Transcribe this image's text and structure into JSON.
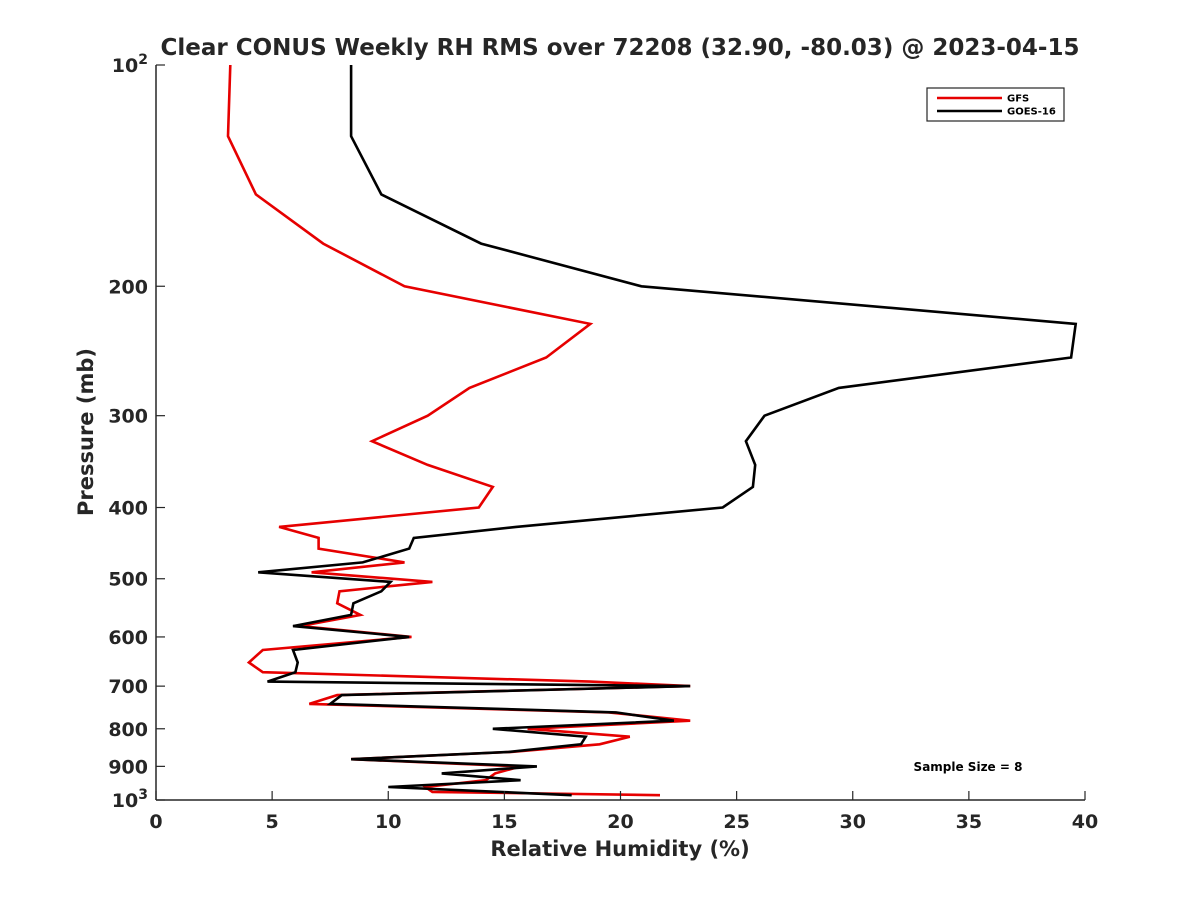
{
  "chart_data": {
    "type": "line",
    "title": "Clear CONUS Weekly RH RMS over 72208 (32.90, -80.03) @ 2023-04-15",
    "xlabel": "Relative Humidity (%)",
    "ylabel": "Pressure (mb)",
    "xlim": [
      0,
      40
    ],
    "ylim": [
      100,
      1000
    ],
    "yscale": "log",
    "y_reversed": true,
    "grid": false,
    "legend_position": "top-right",
    "x_ticks": [
      0,
      5,
      10,
      15,
      20,
      25,
      30,
      35,
      40
    ],
    "x_tick_labels": [
      "0",
      "5",
      "10",
      "15",
      "20",
      "25",
      "30",
      "35",
      "40"
    ],
    "y_ticks": [
      100,
      200,
      300,
      400,
      500,
      600,
      700,
      800,
      900,
      1000
    ],
    "y_tick_labels": [
      "10^2",
      "200",
      "300",
      "400",
      "500",
      "600",
      "700",
      "800",
      "900",
      "10^3"
    ],
    "annotation": "Sample Size = 8",
    "series": [
      {
        "name": "GFS",
        "color": "#e60000",
        "points": [
          [
            3.2,
            100
          ],
          [
            3.1,
            125
          ],
          [
            4.3,
            150
          ],
          [
            7.2,
            175
          ],
          [
            10.7,
            200
          ],
          [
            18.7,
            225
          ],
          [
            16.8,
            250
          ],
          [
            13.5,
            275
          ],
          [
            11.7,
            300
          ],
          [
            9.3,
            325
          ],
          [
            11.7,
            350
          ],
          [
            14.5,
            375
          ],
          [
            13.9,
            400
          ],
          [
            5.3,
            425
          ],
          [
            7.0,
            440
          ],
          [
            7.0,
            455
          ],
          [
            10.7,
            475
          ],
          [
            6.7,
            490
          ],
          [
            11.9,
            505
          ],
          [
            7.9,
            520
          ],
          [
            7.8,
            540
          ],
          [
            8.8,
            560
          ],
          [
            6.2,
            580
          ],
          [
            11.0,
            600
          ],
          [
            4.6,
            625
          ],
          [
            4.0,
            650
          ],
          [
            4.6,
            670
          ],
          [
            18.7,
            690
          ],
          [
            23.0,
            700
          ],
          [
            7.8,
            720
          ],
          [
            6.6,
            740
          ],
          [
            19.5,
            760
          ],
          [
            23.0,
            780
          ],
          [
            16.0,
            800
          ],
          [
            20.4,
            820
          ],
          [
            19.1,
            840
          ],
          [
            15.3,
            860
          ],
          [
            8.4,
            880
          ],
          [
            15.7,
            900
          ],
          [
            14.6,
            920
          ],
          [
            14.2,
            940
          ],
          [
            11.6,
            960
          ],
          [
            11.9,
            975
          ],
          [
            21.7,
            985
          ]
        ]
      },
      {
        "name": "GOES-16",
        "color": "#000000",
        "points": [
          [
            8.4,
            100
          ],
          [
            8.4,
            125
          ],
          [
            9.7,
            150
          ],
          [
            14.0,
            175
          ],
          [
            20.9,
            200
          ],
          [
            39.6,
            225
          ],
          [
            39.4,
            250
          ],
          [
            29.4,
            275
          ],
          [
            26.2,
            300
          ],
          [
            25.4,
            325
          ],
          [
            25.8,
            350
          ],
          [
            25.7,
            375
          ],
          [
            24.4,
            400
          ],
          [
            15.5,
            425
          ],
          [
            11.1,
            440
          ],
          [
            10.9,
            455
          ],
          [
            8.9,
            475
          ],
          [
            4.4,
            490
          ],
          [
            10.1,
            505
          ],
          [
            9.7,
            520
          ],
          [
            8.5,
            540
          ],
          [
            8.4,
            560
          ],
          [
            5.9,
            580
          ],
          [
            10.9,
            600
          ],
          [
            5.9,
            625
          ],
          [
            6.1,
            650
          ],
          [
            6.0,
            670
          ],
          [
            4.8,
            690
          ],
          [
            23.0,
            700
          ],
          [
            8.0,
            720
          ],
          [
            7.5,
            740
          ],
          [
            19.8,
            760
          ],
          [
            22.3,
            780
          ],
          [
            14.5,
            800
          ],
          [
            18.5,
            820
          ],
          [
            18.3,
            840
          ],
          [
            15.2,
            860
          ],
          [
            8.4,
            880
          ],
          [
            16.4,
            900
          ],
          [
            12.3,
            920
          ],
          [
            15.7,
            940
          ],
          [
            10.0,
            960
          ],
          [
            14.8,
            975
          ],
          [
            17.9,
            985
          ]
        ]
      }
    ]
  }
}
